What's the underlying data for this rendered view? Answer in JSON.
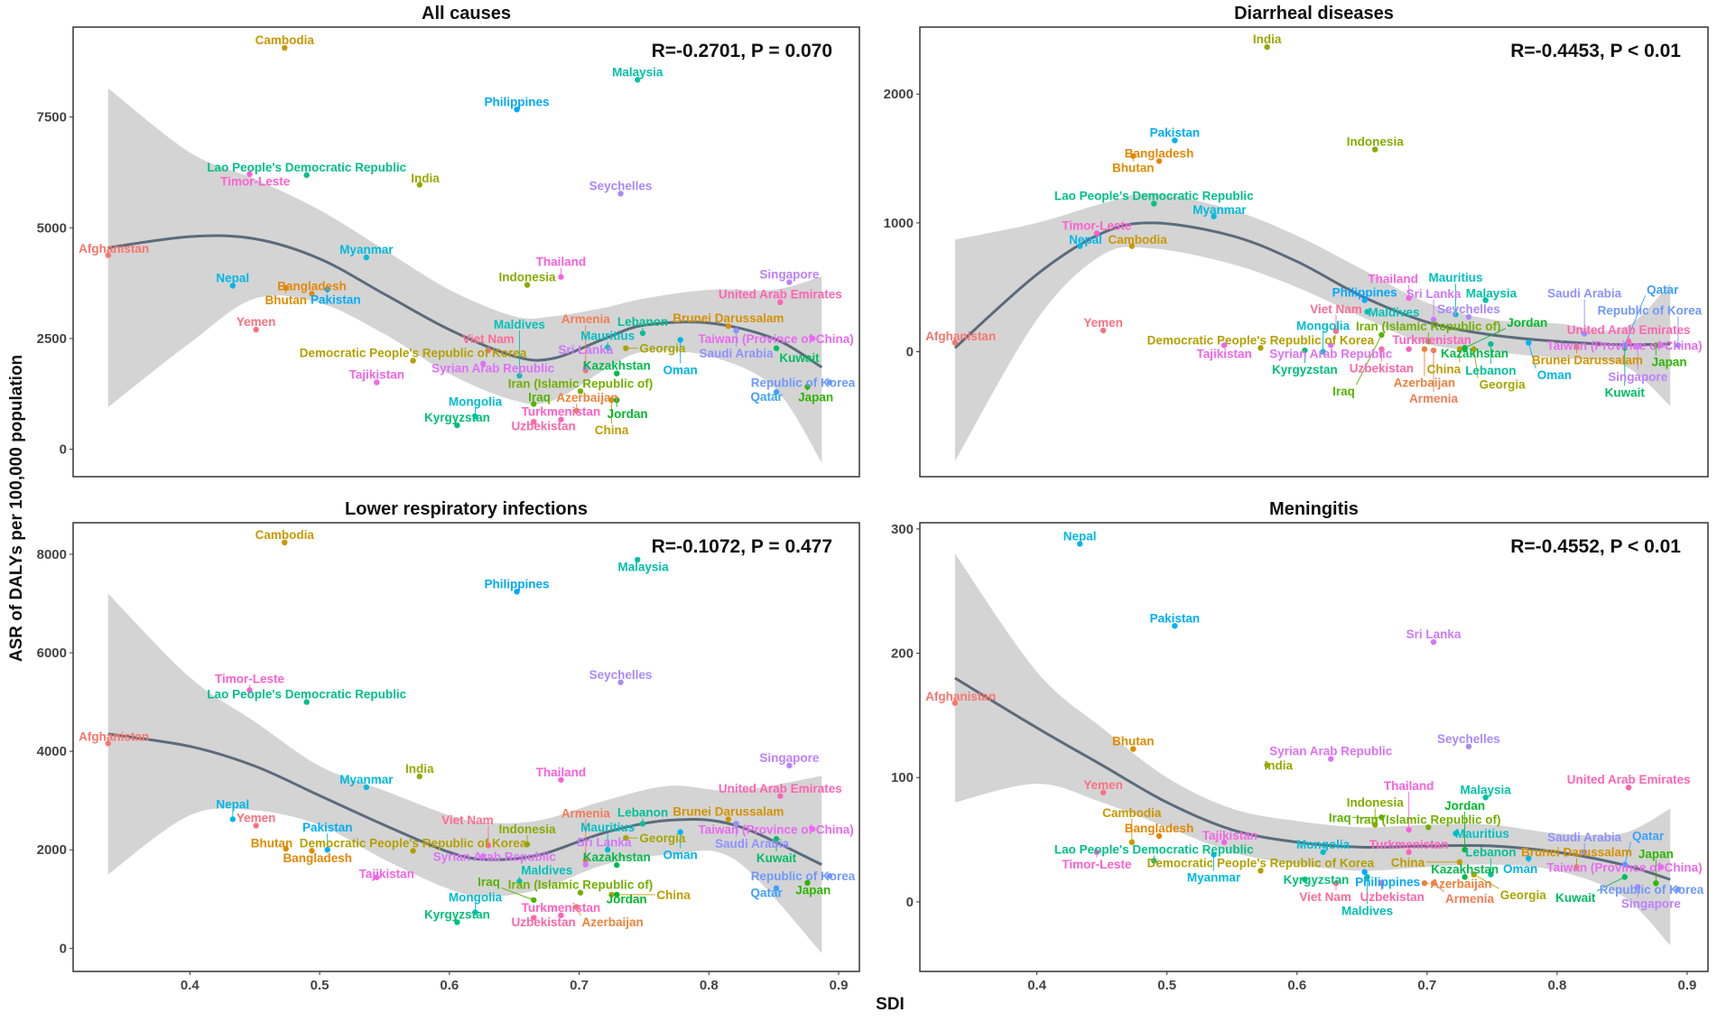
{
  "chart_data": {
    "type": "scatter",
    "xlabel": "SDI",
    "ylabel": "ASR of DALYs per 100,000 population",
    "xlim": [
      0.31,
      0.916
    ],
    "xticks": [
      0.4,
      0.5,
      0.6,
      0.7,
      0.8,
      0.9
    ],
    "countries": [
      {
        "name": "Afghanistan",
        "sdi": 0.337,
        "all": 4380,
        "diarrheal": 70,
        "lri": 4160,
        "meningitis": 160
      },
      {
        "name": "Armenia",
        "sdi": 0.705,
        "all": 1780,
        "diarrheal": 10,
        "lri": 1780,
        "meningitis": 15
      },
      {
        "name": "Azerbaijan",
        "sdi": 0.698,
        "all": 870,
        "diarrheal": 20,
        "lri": 840,
        "meningitis": 15
      },
      {
        "name": "Bangladesh",
        "sdi": 0.494,
        "all": 3510,
        "diarrheal": 1480,
        "lri": 1980,
        "meningitis": 53
      },
      {
        "name": "Bhutan",
        "sdi": 0.474,
        "all": 3640,
        "diarrheal": 1520,
        "lri": 2020,
        "meningitis": 123
      },
      {
        "name": "Brunei Darussalam",
        "sdi": 0.815,
        "all": 2780,
        "diarrheal": 40,
        "lri": 2620,
        "meningitis": 28
      },
      {
        "name": "Cambodia",
        "sdi": 0.473,
        "all": 9060,
        "diarrheal": 820,
        "lri": 8240,
        "meningitis": 48
      },
      {
        "name": "China",
        "sdi": 0.725,
        "all": 1110,
        "diarrheal": 20,
        "lri": 1090,
        "meningitis": 32
      },
      {
        "name": "Democratic People's Republic of Korea",
        "sdi": 0.572,
        "all": 2000,
        "diarrheal": 30,
        "lri": 1980,
        "meningitis": 25
      },
      {
        "name": "Georgia",
        "sdi": 0.736,
        "all": 2280,
        "diarrheal": 20,
        "lri": 2240,
        "meningitis": 22
      },
      {
        "name": "India",
        "sdi": 0.577,
        "all": 5970,
        "diarrheal": 2365,
        "lri": 3490,
        "meningitis": 110
      },
      {
        "name": "Indonesia",
        "sdi": 0.66,
        "all": 3710,
        "diarrheal": 1570,
        "lri": 2110,
        "meningitis": 62
      },
      {
        "name": "Iran (Islamic Republic of)",
        "sdi": 0.701,
        "all": 1310,
        "diarrheal": 80,
        "lri": 1130,
        "meningitis": 60
      },
      {
        "name": "Iraq",
        "sdi": 0.665,
        "all": 1020,
        "diarrheal": 130,
        "lri": 980,
        "meningitis": 68
      },
      {
        "name": "Japan",
        "sdi": 0.876,
        "all": 1410,
        "diarrheal": 50,
        "lri": 1330,
        "meningitis": 15
      },
      {
        "name": "Jordan",
        "sdi": 0.729,
        "all": 1110,
        "diarrheal": 30,
        "lri": 1090,
        "meningitis": 42
      },
      {
        "name": "Kazakhstan",
        "sdi": 0.729,
        "all": 1710,
        "diarrheal": 20,
        "lri": 1690,
        "meningitis": 20
      },
      {
        "name": "Kuwait",
        "sdi": 0.852,
        "all": 2280,
        "diarrheal": 30,
        "lri": 2220,
        "meningitis": 20
      },
      {
        "name": "Kyrgyzstan",
        "sdi": 0.606,
        "all": 540,
        "diarrheal": 10,
        "lri": 530,
        "meningitis": 18
      },
      {
        "name": "Lao People's Democratic Republic",
        "sdi": 0.49,
        "all": 6190,
        "diarrheal": 1150,
        "lri": 5000,
        "meningitis": 33
      },
      {
        "name": "Lebanon",
        "sdi": 0.749,
        "all": 2620,
        "diarrheal": 60,
        "lri": 2530,
        "meningitis": 22
      },
      {
        "name": "Malaysia",
        "sdi": 0.745,
        "all": 8340,
        "diarrheal": 400,
        "lri": 7890,
        "meningitis": 84
      },
      {
        "name": "Maldives",
        "sdi": 0.654,
        "all": 1660,
        "diarrheal": 310,
        "lri": 1360,
        "meningitis": 20
      },
      {
        "name": "Mauritius",
        "sdi": 0.722,
        "all": 2300,
        "diarrheal": 290,
        "lri": 2000,
        "meningitis": 55
      },
      {
        "name": "Mongolia",
        "sdi": 0.62,
        "all": 740,
        "diarrheal": 0,
        "lri": 730,
        "meningitis": 40
      },
      {
        "name": "Myanmar",
        "sdi": 0.536,
        "all": 4330,
        "diarrheal": 1050,
        "lri": 3270,
        "meningitis": 38
      },
      {
        "name": "Nepal",
        "sdi": 0.433,
        "all": 3690,
        "diarrheal": 820,
        "lri": 2620,
        "meningitis": 288
      },
      {
        "name": "Oman",
        "sdi": 0.778,
        "all": 2470,
        "diarrheal": 70,
        "lri": 2360,
        "meningitis": 35
      },
      {
        "name": "Pakistan",
        "sdi": 0.506,
        "all": 3610,
        "diarrheal": 1640,
        "lri": 2000,
        "meningitis": 222
      },
      {
        "name": "Philippines",
        "sdi": 0.652,
        "all": 7670,
        "diarrheal": 400,
        "lri": 7240,
        "meningitis": 24
      },
      {
        "name": "Qatar",
        "sdi": 0.852,
        "all": 1290,
        "diarrheal": 50,
        "lri": 1220,
        "meningitis": 30
      },
      {
        "name": "Republic of Korea",
        "sdi": 0.893,
        "all": 1510,
        "diarrheal": 50,
        "lri": 1470,
        "meningitis": 10
      },
      {
        "name": "Saudi Arabia",
        "sdi": 0.821,
        "all": 2680,
        "diarrheal": 140,
        "lri": 2530,
        "meningitis": 40
      },
      {
        "name": "Seychelles",
        "sdi": 0.732,
        "all": 5770,
        "diarrheal": 270,
        "lri": 5400,
        "meningitis": 125
      },
      {
        "name": "Singapore",
        "sdi": 0.862,
        "all": 3770,
        "diarrheal": 40,
        "lri": 3710,
        "meningitis": 12
      },
      {
        "name": "Sri Lanka",
        "sdi": 0.705,
        "all": 1830,
        "diarrheal": 250,
        "lri": 1700,
        "meningitis": 209
      },
      {
        "name": "Syrian Arab Republic",
        "sdi": 0.626,
        "all": 1930,
        "diarrheal": 50,
        "lri": 1870,
        "meningitis": 115
      },
      {
        "name": "Taiwan (Province of China)",
        "sdi": 0.88,
        "all": 2500,
        "diarrheal": 50,
        "lri": 2420,
        "meningitis": 28
      },
      {
        "name": "Tajikistan",
        "sdi": 0.544,
        "all": 1510,
        "diarrheal": 50,
        "lri": 1440,
        "meningitis": 48
      },
      {
        "name": "Thailand",
        "sdi": 0.686,
        "all": 3890,
        "diarrheal": 417,
        "lri": 3420,
        "meningitis": 58
      },
      {
        "name": "Timor-Leste",
        "sdi": 0.446,
        "all": 6210,
        "diarrheal": 920,
        "lri": 5240,
        "meningitis": 40
      },
      {
        "name": "Turkmenistan",
        "sdi": 0.686,
        "all": 670,
        "diarrheal": 20,
        "lri": 670,
        "meningitis": 40
      },
      {
        "name": "United Arab Emirates",
        "sdi": 0.855,
        "all": 3320,
        "diarrheal": 80,
        "lri": 3090,
        "meningitis": 92
      },
      {
        "name": "Uzbekistan",
        "sdi": 0.665,
        "all": 620,
        "diarrheal": 20,
        "lri": 620,
        "meningitis": 15
      },
      {
        "name": "Viet Nam",
        "sdi": 0.63,
        "all": 2230,
        "diarrheal": 160,
        "lri": 2090,
        "meningitis": 15
      },
      {
        "name": "Yemen",
        "sdi": 0.451,
        "all": 2700,
        "diarrheal": 165,
        "lri": 2490,
        "meningitis": 88
      }
    ],
    "panels": [
      {
        "key": "all",
        "title": "All causes",
        "annotation": "R=-0.2701, P = 0.070",
        "ylim": [
          -620,
          9530
        ],
        "yticks": [
          0,
          2500,
          5000,
          7500
        ],
        "fit": {
          "x": [
            0.337,
            0.4,
            0.45,
            0.5,
            0.55,
            0.6,
            0.65,
            0.68,
            0.72,
            0.75,
            0.8,
            0.85,
            0.887
          ],
          "y": [
            4550,
            4800,
            4750,
            4300,
            3500,
            2700,
            2100,
            2050,
            2500,
            2800,
            2850,
            2500,
            1850
          ],
          "lo": [
            950,
            2400,
            3400,
            3300,
            2600,
            1700,
            1100,
            1100,
            1800,
            2200,
            2100,
            1400,
            -300
          ],
          "hi": [
            8150,
            6700,
            6100,
            5400,
            4500,
            3600,
            3000,
            3000,
            3200,
            3400,
            3600,
            3600,
            3900
          ]
        }
      },
      {
        "key": "diarrheal",
        "title": "Diarrheal diseases",
        "annotation": "R=-0.4453, P < 0.01",
        "ylim": [
          -970,
          2520
        ],
        "yticks": [
          0,
          1000,
          2000
        ],
        "fit": {
          "x": [
            0.337,
            0.4,
            0.45,
            0.49,
            0.55,
            0.6,
            0.65,
            0.7,
            0.75,
            0.8,
            0.85,
            0.887
          ],
          "y": [
            30,
            600,
            920,
            1000,
            900,
            700,
            430,
            230,
            130,
            80,
            55,
            60
          ],
          "lo": [
            -850,
            250,
            750,
            800,
            680,
            500,
            270,
            60,
            0,
            -50,
            -100,
            -420
          ],
          "hi": [
            870,
            1000,
            1150,
            1230,
            1100,
            900,
            640,
            380,
            250,
            220,
            180,
            530
          ]
        }
      },
      {
        "key": "lri",
        "title": "Lower respiratory infections",
        "annotation": "R=-0.1072, P = 0.477",
        "ylim": [
          -470,
          8640
        ],
        "yticks": [
          0,
          2000,
          4000,
          6000,
          8000
        ],
        "fit": {
          "x": [
            0.337,
            0.4,
            0.45,
            0.5,
            0.55,
            0.6,
            0.63,
            0.67,
            0.72,
            0.77,
            0.82,
            0.887
          ],
          "y": [
            4350,
            4100,
            3700,
            3100,
            2500,
            1950,
            1800,
            1900,
            2350,
            2600,
            2500,
            1700
          ],
          "lo": [
            1500,
            2700,
            2800,
            2500,
            1800,
            1200,
            1050,
            1200,
            1700,
            1900,
            1800,
            -100
          ],
          "hi": [
            7200,
            5500,
            4600,
            3700,
            3200,
            2700,
            2550,
            2600,
            3000,
            3300,
            3200,
            3500
          ]
        }
      },
      {
        "key": "meningitis",
        "title": "Meningitis",
        "annotation": "R=-0.4552, P < 0.01",
        "ylim": [
          -56,
          305
        ],
        "yticks": [
          0,
          100,
          200,
          300
        ],
        "fit": {
          "x": [
            0.337,
            0.4,
            0.45,
            0.5,
            0.55,
            0.6,
            0.65,
            0.7,
            0.75,
            0.8,
            0.85,
            0.887
          ],
          "y": [
            180,
            140,
            110,
            80,
            58,
            48,
            44,
            45,
            45,
            40,
            30,
            18
          ],
          "lo": [
            80,
            95,
            80,
            60,
            40,
            30,
            25,
            28,
            30,
            25,
            5,
            -35
          ],
          "hi": [
            280,
            185,
            140,
            100,
            75,
            65,
            60,
            62,
            62,
            55,
            55,
            75
          ]
        }
      }
    ]
  }
}
